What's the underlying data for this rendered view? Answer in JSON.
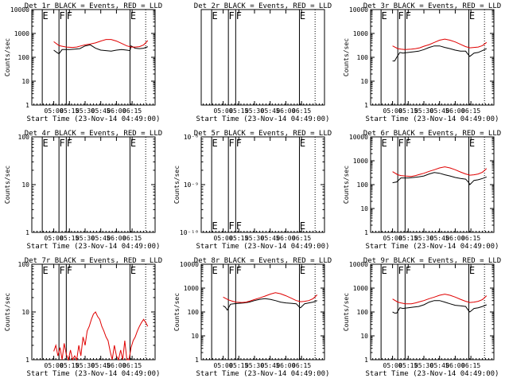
{
  "colors": {
    "events": "#000000",
    "lld": "#e00000",
    "axes": "#000000",
    "background": "#ffffff"
  },
  "chart_data": [
    {
      "type": "line",
      "title": "Det 1r BLACK = Events, RED = LLD",
      "xlabel": "Start Time (23-Nov-14 04:49:00)",
      "ylabel": "Counts/sec",
      "x_ticks": [
        "05:00",
        "05:15",
        "05:30",
        "05:45",
        "06:00",
        "06:15"
      ],
      "y_scale": "log",
      "ylim": [
        1,
        10000
      ],
      "y_ticks": [
        "1",
        "10",
        "100",
        "1000",
        "10000"
      ],
      "markers": [
        {
          "label": "E"
        },
        {
          "label": "F"
        },
        {
          "label": "F"
        },
        {
          "label": "E"
        }
      ],
      "series": [
        {
          "name": "Events",
          "color": "#000000",
          "x_minutes": [
            0,
            3,
            5,
            8,
            15,
            20,
            25,
            30,
            35,
            40,
            45,
            50,
            55,
            60,
            65,
            70,
            73,
            74,
            78,
            82,
            86,
            90
          ],
          "y": [
            200,
            160,
            140,
            210,
            210,
            220,
            230,
            300,
            330,
            240,
            200,
            190,
            180,
            200,
            210,
            200,
            190,
            300,
            240,
            230,
            240,
            280
          ]
        },
        {
          "name": "LLD",
          "color": "#e00000",
          "x_minutes": [
            0,
            5,
            8,
            12,
            18,
            22,
            26,
            30,
            35,
            40,
            45,
            50,
            55,
            60,
            65,
            70,
            73,
            74,
            78,
            82,
            86,
            90
          ],
          "y": [
            450,
            310,
            290,
            270,
            260,
            270,
            300,
            330,
            360,
            400,
            480,
            560,
            560,
            480,
            380,
            300,
            280,
            270,
            270,
            280,
            330,
            500
          ]
        }
      ]
    },
    {
      "type": "line",
      "title": "Det 2r BLACK = Events, RED = LLD",
      "xlabel": "Start Time (23-Nov-14 04:49:00)",
      "ylabel": "",
      "x_ticks": [
        "05:00",
        "05:15",
        "05:30",
        "05:45",
        "06:00",
        "06:15"
      ],
      "y_scale": "linear",
      "y_ticks": [],
      "markers": [
        {
          "label": "E"
        },
        {
          "label": "F"
        },
        {
          "label": "F"
        },
        {
          "label": "E"
        }
      ],
      "series": []
    },
    {
      "type": "line",
      "title": "Det 3r BLACK = Events, RED = LLD",
      "xlabel": "Start Time (23-Nov-14 04:49:00)",
      "ylabel": "Counts/sec",
      "x_ticks": [
        "05:00",
        "05:15",
        "05:30",
        "05:45",
        "06:00",
        "06:15"
      ],
      "y_scale": "log",
      "ylim": [
        1,
        10000
      ],
      "y_ticks": [
        "1",
        "10",
        "100",
        "1000",
        "10000"
      ],
      "markers": [
        {
          "label": "E"
        },
        {
          "label": "F"
        },
        {
          "label": "F"
        },
        {
          "label": "E"
        }
      ],
      "series": [
        {
          "name": "Events",
          "color": "#000000",
          "x_minutes": [
            0,
            2,
            4,
            7,
            10,
            15,
            20,
            25,
            30,
            35,
            40,
            45,
            50,
            55,
            60,
            65,
            70,
            73,
            74,
            78,
            82,
            86,
            90
          ],
          "y": [
            70,
            70,
            100,
            160,
            150,
            160,
            170,
            180,
            210,
            260,
            300,
            300,
            260,
            230,
            200,
            180,
            180,
            120,
            110,
            150,
            160,
            190,
            230
          ]
        },
        {
          "name": "LLD",
          "color": "#e00000",
          "x_minutes": [
            0,
            5,
            8,
            12,
            18,
            22,
            26,
            30,
            35,
            40,
            45,
            50,
            55,
            60,
            65,
            70,
            73,
            74,
            78,
            82,
            86,
            90
          ],
          "y": [
            300,
            230,
            220,
            210,
            220,
            230,
            250,
            290,
            340,
            420,
            520,
            580,
            520,
            440,
            350,
            280,
            260,
            250,
            260,
            270,
            310,
            420
          ]
        }
      ]
    },
    {
      "type": "line",
      "title": "Det 4r BLACK = Events, RED = LLD",
      "xlabel": "Start Time (23-Nov-14 04:49:00)",
      "ylabel": "Counts/sec",
      "x_ticks": [
        "05:00",
        "05:15",
        "05:30",
        "05:45",
        "06:00",
        "06:15"
      ],
      "y_scale": "log",
      "ylim": [
        1,
        100
      ],
      "y_ticks": [
        "1",
        "10",
        "100"
      ],
      "markers": [
        {
          "label": "E"
        },
        {
          "label": "F"
        },
        {
          "label": "F"
        },
        {
          "label": "E"
        }
      ],
      "series": []
    },
    {
      "type": "line",
      "title": "Det 5r BLACK = Events, RED = LLD",
      "xlabel": "Start Time (23-Nov-14 04:49:00)",
      "ylabel": "Counts/sec",
      "x_ticks": [
        "05:00",
        "05:15",
        "05:30",
        "05:45",
        "06:00",
        "06:15"
      ],
      "y_scale": "log",
      "ylim": [
        1e-10,
        1e-08
      ],
      "y_ticks": [
        "10⁻¹⁰",
        "10⁻⁹",
        "10⁻⁸"
      ],
      "markers": [
        {
          "label": "E"
        },
        {
          "label": "F"
        },
        {
          "label": "F"
        },
        {
          "label": "E"
        }
      ],
      "series": []
    },
    {
      "type": "line",
      "title": "Det 6r BLACK = Events, RED = LLD",
      "xlabel": "Start Time (23-Nov-14 04:49:00)",
      "ylabel": "Counts/sec",
      "x_ticks": [
        "05:00",
        "05:15",
        "05:30",
        "05:45",
        "06:00",
        "06:15"
      ],
      "y_scale": "log",
      "ylim": [
        1,
        10000
      ],
      "y_ticks": [
        "1",
        "10",
        "100",
        "1000",
        "10000"
      ],
      "markers": [
        {
          "label": "E"
        },
        {
          "label": "F"
        },
        {
          "label": "F"
        },
        {
          "label": "E"
        }
      ],
      "series": [
        {
          "name": "Events",
          "color": "#000000",
          "x_minutes": [
            0,
            4,
            8,
            15,
            20,
            25,
            30,
            35,
            40,
            45,
            50,
            55,
            60,
            65,
            70,
            73,
            74,
            78,
            82,
            86,
            90
          ],
          "y": [
            120,
            130,
            190,
            190,
            200,
            210,
            230,
            280,
            320,
            300,
            260,
            230,
            200,
            180,
            170,
            120,
            100,
            150,
            160,
            180,
            210
          ]
        },
        {
          "name": "LLD",
          "color": "#e00000",
          "x_minutes": [
            0,
            5,
            8,
            12,
            18,
            22,
            26,
            30,
            35,
            40,
            45,
            50,
            55,
            60,
            65,
            70,
            73,
            74,
            78,
            82,
            86,
            90
          ],
          "y": [
            350,
            260,
            240,
            230,
            220,
            240,
            270,
            300,
            360,
            420,
            500,
            560,
            500,
            420,
            340,
            280,
            260,
            250,
            260,
            280,
            330,
            470
          ]
        }
      ]
    },
    {
      "type": "line",
      "title": "Det 7r BLACK = Events, RED = LLD",
      "xlabel": "Start Time (23-Nov-14 04:49:00)",
      "ylabel": "Counts/sec",
      "x_ticks": [
        "05:00",
        "05:15",
        "05:30",
        "05:45",
        "06:00",
        "06:15"
      ],
      "y_scale": "log",
      "ylim": [
        1,
        100
      ],
      "y_ticks": [
        "1",
        "10",
        "100"
      ],
      "markers": [
        {
          "label": "E"
        },
        {
          "label": "F"
        },
        {
          "label": "F"
        },
        {
          "label": "E"
        }
      ],
      "series": [
        {
          "name": "LLD",
          "color": "#e00000",
          "x_minutes": [
            0,
            2,
            4,
            6,
            8,
            10,
            12,
            14,
            16,
            18,
            20,
            22,
            24,
            26,
            28,
            30,
            32,
            34,
            36,
            38,
            40,
            42,
            44,
            46,
            48,
            50,
            52,
            54,
            56,
            58,
            60,
            62,
            64,
            66,
            68,
            70,
            72,
            74,
            76,
            78,
            80,
            82,
            84,
            86,
            88,
            90
          ],
          "y": [
            1.5,
            2,
            1.2,
            1.8,
            1,
            2.2,
            1.3,
            1,
            1.6,
            1,
            1.2,
            1,
            2,
            1.2,
            3,
            2,
            4,
            5,
            7,
            9,
            10,
            8,
            7,
            5,
            4,
            3,
            2.5,
            1.5,
            1,
            2,
            1.2,
            1,
            1.6,
            1,
            2.5,
            1,
            1,
            1.8,
            2.5,
            3,
            4,
            5,
            6,
            7,
            6,
            5
          ]
        }
      ]
    },
    {
      "type": "line",
      "title": "Det 8r BLACK = Events, RED = LLD",
      "xlabel": "Start Time (23-Nov-14 04:49:00)",
      "ylabel": "Counts/sec",
      "x_ticks": [
        "05:00",
        "05:15",
        "05:30",
        "05:45",
        "06:00",
        "06:15"
      ],
      "y_scale": "log",
      "ylim": [
        1,
        10000
      ],
      "y_ticks": [
        "1",
        "10",
        "100",
        "1000",
        "10000"
      ],
      "markers": [
        {
          "label": "E"
        },
        {
          "label": "F"
        },
        {
          "label": "F"
        },
        {
          "label": "E"
        }
      ],
      "series": [
        {
          "name": "Events",
          "color": "#000000",
          "x_minutes": [
            0,
            2,
            4,
            7,
            10,
            15,
            20,
            25,
            30,
            35,
            40,
            45,
            50,
            55,
            60,
            65,
            70,
            73,
            74,
            78,
            82,
            86,
            90
          ],
          "y": [
            180,
            160,
            120,
            210,
            220,
            230,
            240,
            260,
            300,
            340,
            360,
            340,
            300,
            260,
            240,
            230,
            220,
            160,
            150,
            220,
            240,
            260,
            300
          ]
        },
        {
          "name": "LLD",
          "color": "#e00000",
          "x_minutes": [
            0,
            5,
            8,
            12,
            18,
            22,
            26,
            30,
            35,
            40,
            45,
            50,
            55,
            60,
            65,
            70,
            73,
            74,
            78,
            82,
            86,
            90
          ],
          "y": [
            420,
            320,
            290,
            260,
            250,
            260,
            290,
            330,
            390,
            460,
            560,
            640,
            580,
            480,
            380,
            300,
            280,
            270,
            280,
            300,
            360,
            520
          ]
        }
      ]
    },
    {
      "type": "line",
      "title": "Det 9r BLACK = Events, RED = LLD",
      "xlabel": "Start Time (23-Nov-14 04:49:00)",
      "ylabel": "Counts/sec",
      "x_ticks": [
        "05:00",
        "05:15",
        "05:30",
        "05:45",
        "06:00",
        "06:15"
      ],
      "y_scale": "log",
      "ylim": [
        1,
        10000
      ],
      "y_ticks": [
        "1",
        "10",
        "100",
        "1000",
        "10000"
      ],
      "markers": [
        {
          "label": "E"
        },
        {
          "label": "F"
        },
        {
          "label": "F"
        },
        {
          "label": "E"
        }
      ],
      "series": [
        {
          "name": "Events",
          "color": "#000000",
          "x_minutes": [
            0,
            2,
            4,
            7,
            10,
            15,
            20,
            25,
            30,
            35,
            40,
            45,
            50,
            55,
            60,
            65,
            70,
            73,
            74,
            78,
            82,
            86,
            90
          ],
          "y": [
            100,
            90,
            90,
            150,
            140,
            150,
            160,
            170,
            200,
            260,
            300,
            300,
            260,
            220,
            190,
            180,
            170,
            110,
            100,
            140,
            150,
            170,
            200
          ]
        },
        {
          "name": "LLD",
          "color": "#e00000",
          "x_minutes": [
            0,
            5,
            8,
            12,
            18,
            22,
            26,
            30,
            35,
            40,
            45,
            50,
            55,
            60,
            65,
            70,
            73,
            74,
            78,
            82,
            86,
            90
          ],
          "y": [
            350,
            260,
            240,
            220,
            220,
            240,
            270,
            300,
            360,
            420,
            500,
            560,
            500,
            420,
            340,
            280,
            260,
            250,
            260,
            280,
            330,
            480
          ]
        }
      ]
    }
  ]
}
